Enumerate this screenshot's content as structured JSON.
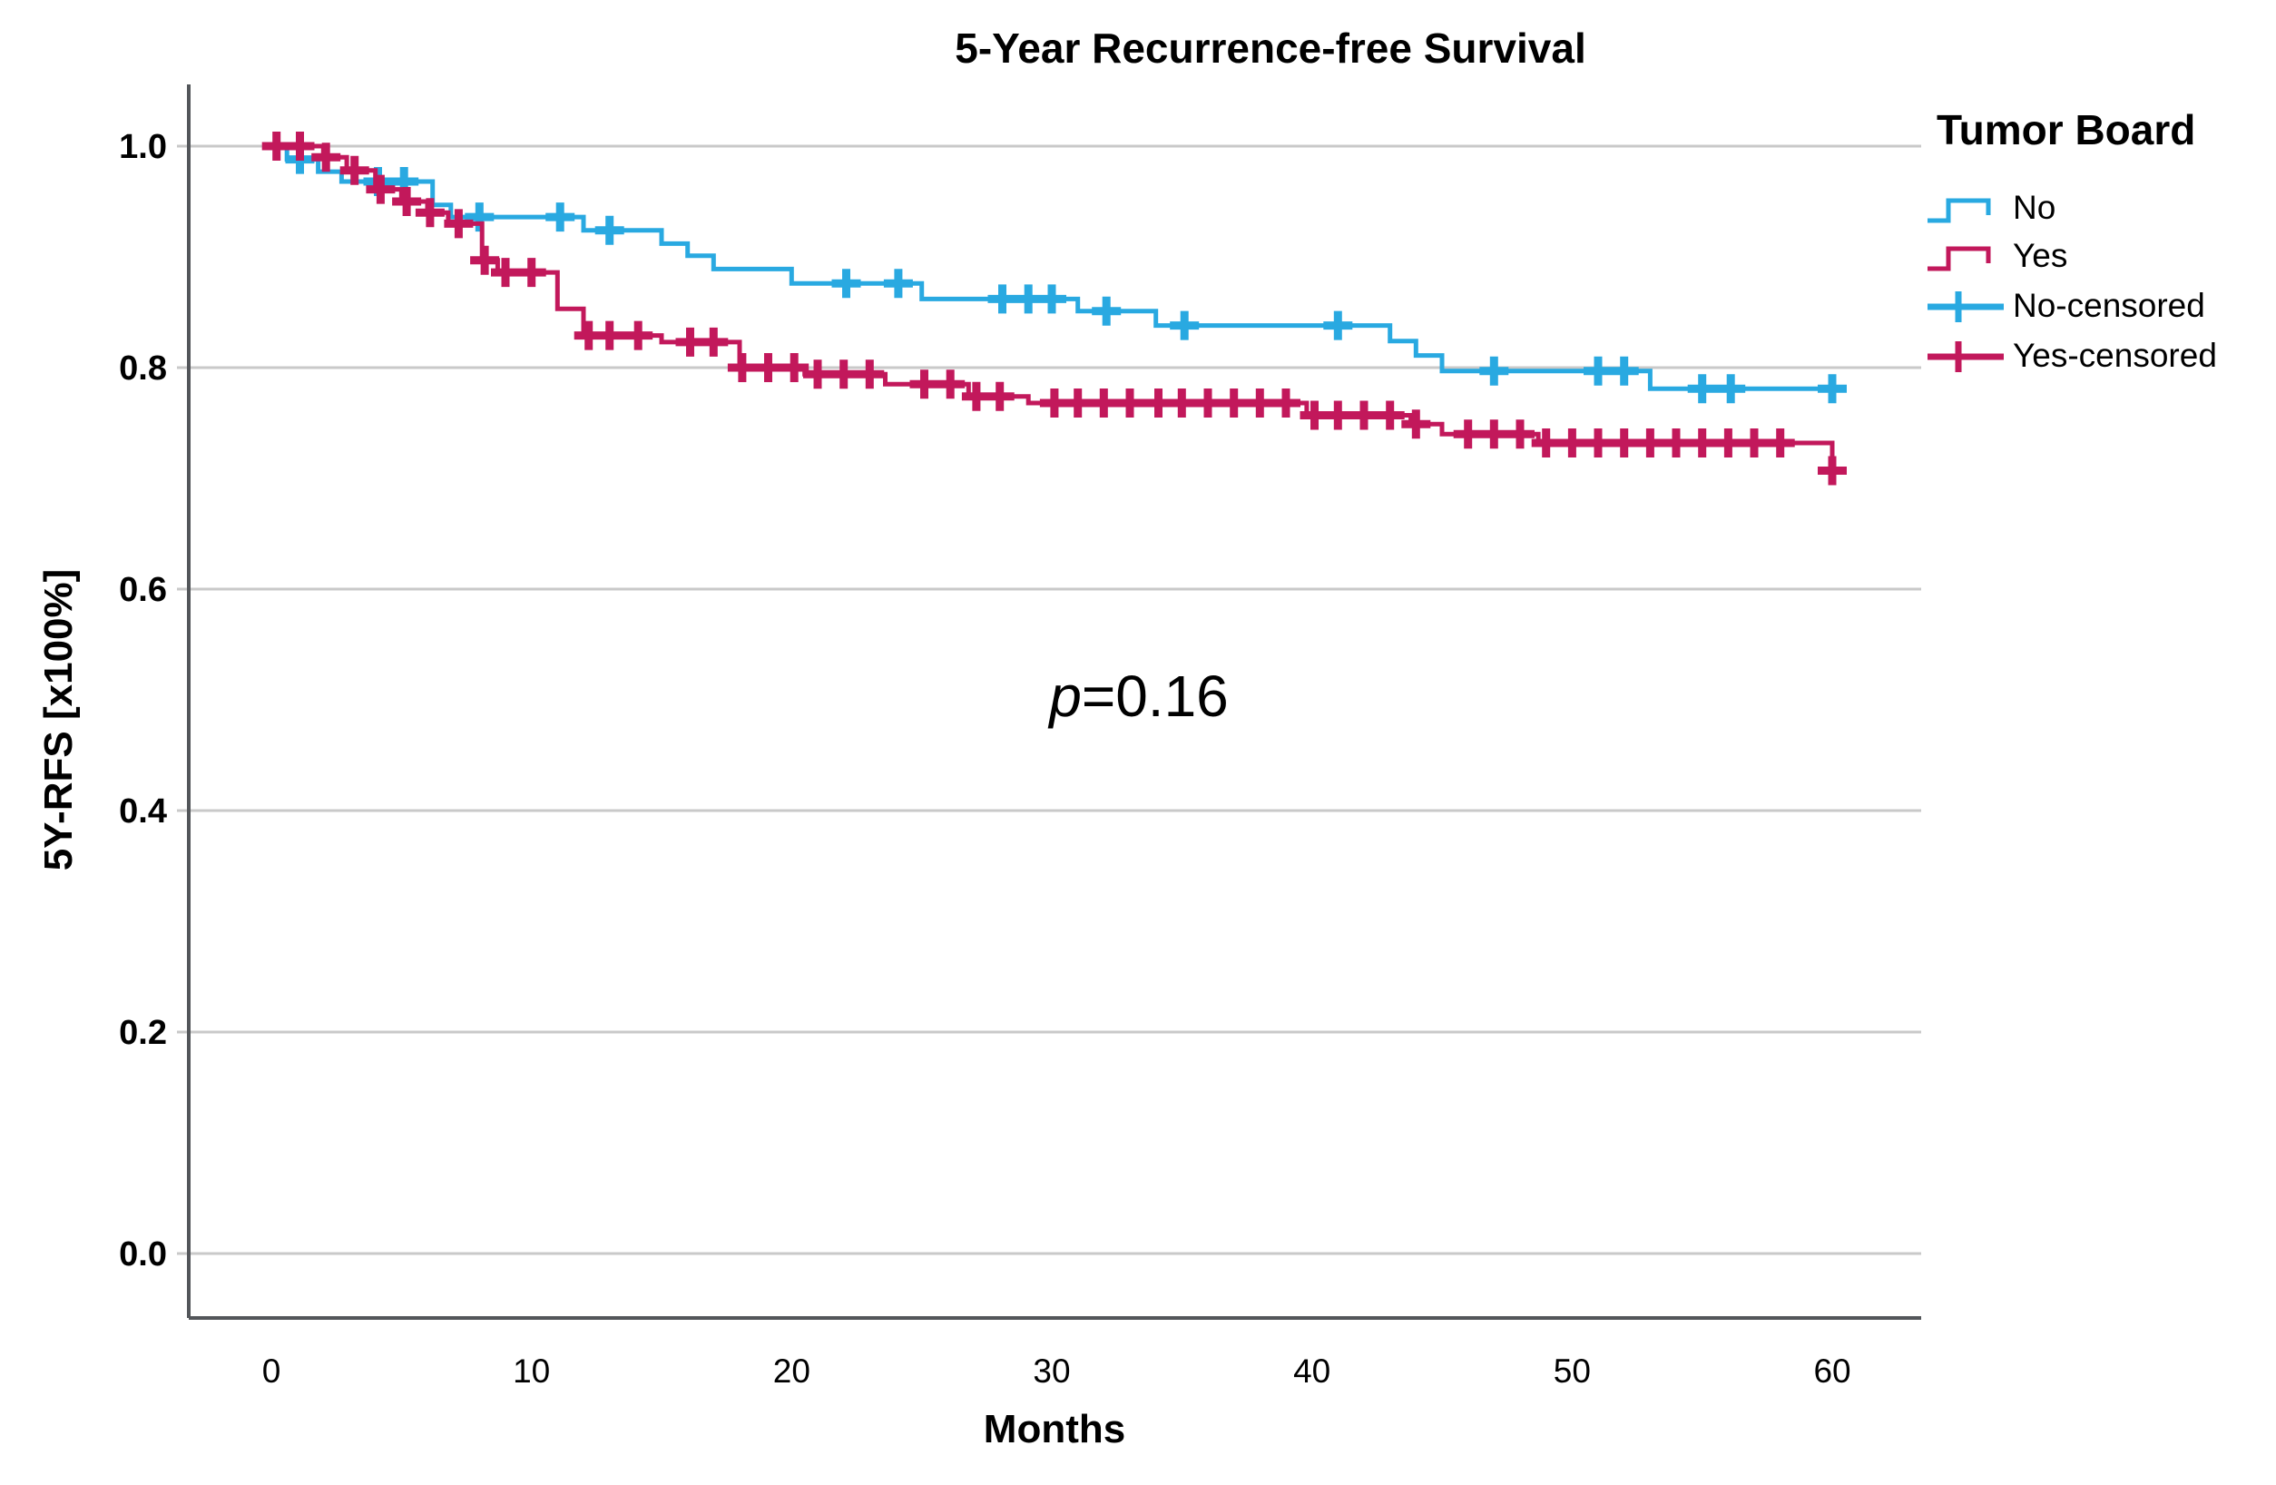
{
  "title": "5-Year Recurrence-free Survival",
  "annotation": {
    "symbol": "p",
    "rest": "=0.16"
  },
  "legend": {
    "title": "Tumor Board",
    "items": [
      {
        "label": "No",
        "type": "step",
        "color": "#29A9E1"
      },
      {
        "label": "Yes",
        "type": "step",
        "color": "#C2185B"
      },
      {
        "label": "No-censored",
        "type": "censored",
        "color": "#29A9E1"
      },
      {
        "label": "Yes-censored",
        "type": "censored",
        "color": "#C2185B"
      }
    ]
  },
  "axes": {
    "x": {
      "label": "Months",
      "ticks": [
        "0",
        "10",
        "20",
        "30",
        "40",
        "50",
        "60"
      ],
      "tick_values": [
        0,
        10,
        20,
        30,
        40,
        50,
        60
      ]
    },
    "y": {
      "label": "5Y-RFS [x100%]",
      "ticks": [
        "1.0",
        "0.8",
        "0.6",
        "0.4",
        "0.2",
        "0.0"
      ],
      "tick_values": [
        1.0,
        0.8,
        0.6,
        0.4,
        0.2,
        0.0
      ]
    }
  },
  "chart_data": {
    "type": "line",
    "subtype": "kaplan-meier-step-survival",
    "title": "5-Year Recurrence-free Survival",
    "xlabel": "Months",
    "ylabel": "5Y-RFS [x100%]",
    "xlim": [
      0,
      60
    ],
    "ylim": [
      0.0,
      1.0
    ],
    "grid": "horizontal",
    "legend_position": "right",
    "legend_title": "Tumor Board",
    "p_value_annotation": "p=0.16",
    "colors": {
      "no": "#29A9E1",
      "yes": "#C2185B",
      "gridline": "#C9C9C9",
      "axis": "#53565A"
    },
    "series": [
      {
        "name": "No",
        "color": "#29A9E1",
        "steps": [
          [
            0,
            1.0
          ],
          [
            0.6,
            0.988
          ],
          [
            1.8,
            0.977
          ],
          [
            2.7,
            0.968
          ],
          [
            6.2,
            0.947
          ],
          [
            6.9,
            0.936
          ],
          [
            12,
            0.924
          ],
          [
            15,
            0.912
          ],
          [
            16,
            0.901
          ],
          [
            17,
            0.889
          ],
          [
            20,
            0.876
          ],
          [
            25,
            0.862
          ],
          [
            31,
            0.851
          ],
          [
            34,
            0.838
          ],
          [
            43,
            0.824
          ],
          [
            44,
            0.811
          ],
          [
            45,
            0.797
          ],
          [
            53,
            0.781
          ]
        ],
        "end_time": 60,
        "final_survival": 0.781,
        "censored_times": [
          1.1,
          4.1,
          5.1,
          8.0,
          11.1,
          13.0,
          22.1,
          24.1,
          28.1,
          29.1,
          30.0,
          32.1,
          35.1,
          41.0,
          47.0,
          51.0,
          52.0,
          55.0,
          56.1,
          60.0
        ]
      },
      {
        "name": "Yes",
        "color": "#C2185B",
        "steps": [
          [
            0,
            1.0
          ],
          [
            2.0,
            0.99
          ],
          [
            2.9,
            0.978
          ],
          [
            4.0,
            0.961
          ],
          [
            5.0,
            0.95
          ],
          [
            6.0,
            0.94
          ],
          [
            6.8,
            0.93
          ],
          [
            8.1,
            0.897
          ],
          [
            8.7,
            0.886
          ],
          [
            11.0,
            0.853
          ],
          [
            12.0,
            0.829
          ],
          [
            15.0,
            0.823
          ],
          [
            18.0,
            0.8
          ],
          [
            20.5,
            0.794
          ],
          [
            23.6,
            0.785
          ],
          [
            26.8,
            0.774
          ],
          [
            29.1,
            0.768
          ],
          [
            39.8,
            0.757
          ],
          [
            43.8,
            0.749
          ],
          [
            45.0,
            0.74
          ],
          [
            48.7,
            0.732
          ],
          [
            60.0,
            0.707
          ]
        ],
        "end_time": 60,
        "final_survival": 0.707,
        "censored_times": [
          0.2,
          1.1,
          2.1,
          3.2,
          4.2,
          5.2,
          6.1,
          7.2,
          8.2,
          9.0,
          10.0,
          12.2,
          13.0,
          14.1,
          16.1,
          17.0,
          18.1,
          19.1,
          20.1,
          21.0,
          22.0,
          23.0,
          25.1,
          26.1,
          27.1,
          28.0,
          30.1,
          31.0,
          32.0,
          33.0,
          34.1,
          35.0,
          36.0,
          37.0,
          38.0,
          39.0,
          40.1,
          41.0,
          42.0,
          43.0,
          44.0,
          46.0,
          47.0,
          48.0,
          49.0,
          50.0,
          51.0,
          52.0,
          53.0,
          54.0,
          55.0,
          56.0,
          57.0,
          58.0,
          60.0
        ]
      }
    ]
  }
}
